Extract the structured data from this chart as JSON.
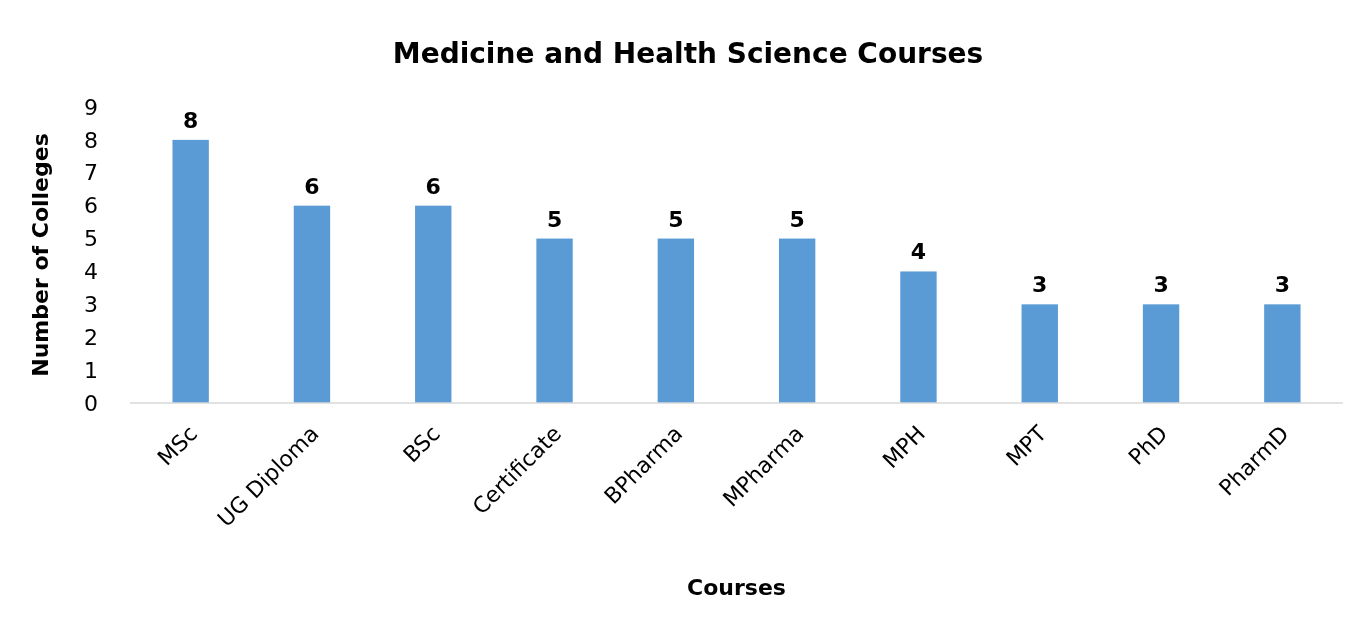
{
  "chart_data": {
    "type": "bar",
    "title": "Medicine and Health Science Courses",
    "xlabel": "Courses",
    "ylabel": "Number of Colleges",
    "categories": [
      "MSc",
      "UG Diploma",
      "BSc",
      "Certificate",
      "BPharma",
      "MPharma",
      "MPH",
      "MPT",
      "PhD",
      "PharmD"
    ],
    "values": [
      8,
      6,
      6,
      5,
      5,
      5,
      4,
      3,
      3,
      3
    ],
    "color": "#5b9bd5",
    "ylim": [
      0,
      9
    ],
    "yticks": [
      0,
      1,
      2,
      3,
      4,
      5,
      6,
      7,
      8,
      9
    ],
    "data_labels": true,
    "grid": false
  }
}
